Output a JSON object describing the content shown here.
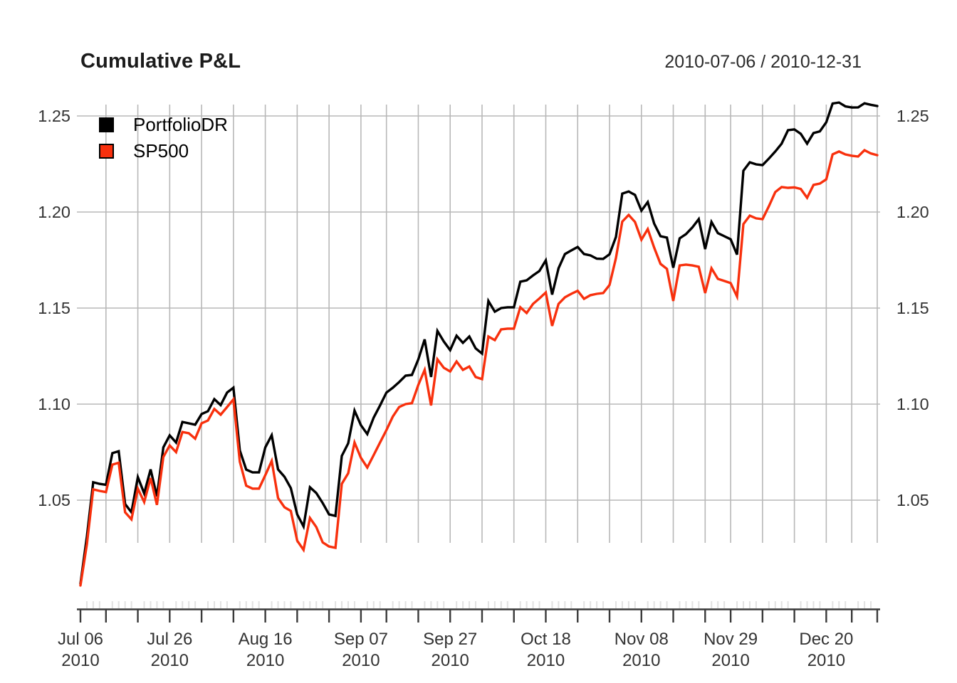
{
  "header": {
    "title": "Cumulative P&L",
    "date_range": "2010-07-06 / 2010-12-31"
  },
  "legend": {
    "position": "top-left",
    "items": [
      {
        "label": "PortfolioDR",
        "color": "#000000"
      },
      {
        "label": "SP500",
        "color": "#F8300D"
      }
    ]
  },
  "chart_data": {
    "type": "line",
    "title": "Cumulative P&L",
    "subtitle": "2010-07-06 / 2010-12-31",
    "grid": true,
    "legend_position": "top-left",
    "xlabel": "",
    "ylabel": "",
    "ylim": [
      1.0,
      1.26
    ],
    "yticks": [
      "1.05",
      "1.10",
      "1.15",
      "1.20",
      "1.25"
    ],
    "ytick_values": [
      1.05,
      1.1,
      1.15,
      1.2,
      1.25
    ],
    "xticks": [
      {
        "day": 0,
        "label": "Jul 06",
        "year": "2010"
      },
      {
        "day": 14,
        "label": "Jul 26",
        "year": "2010"
      },
      {
        "day": 29,
        "label": "Aug 16",
        "year": "2010"
      },
      {
        "day": 44,
        "label": "Sep 07",
        "year": "2010"
      },
      {
        "day": 58,
        "label": "Sep 27",
        "year": "2010"
      },
      {
        "day": 73,
        "label": "Oct 18",
        "year": "2010"
      },
      {
        "day": 88,
        "label": "Nov 08",
        "year": "2010"
      },
      {
        "day": 102,
        "label": "Nov 29",
        "year": "2010"
      },
      {
        "day": 117,
        "label": "Dec 20",
        "year": "2010"
      }
    ],
    "grid_days": [
      4,
      9,
      14,
      19,
      24,
      29,
      34,
      39,
      44,
      48,
      53,
      58,
      63,
      68,
      73,
      78,
      83,
      88,
      93,
      98,
      102,
      107,
      112,
      117,
      121,
      125
    ],
    "major_tick_days": [
      0,
      4,
      9,
      14,
      19,
      24,
      29,
      34,
      39,
      44,
      48,
      53,
      58,
      63,
      68,
      73,
      78,
      83,
      88,
      93,
      98,
      102,
      107,
      112,
      117,
      121,
      125
    ],
    "axis_color": "#3a3a3a",
    "grid_color": "#b8b8b8",
    "minor_tick_color": "#e2e2e2",
    "text_color": "#333333",
    "x_dates": [
      "2010-07-06",
      "2010-07-07",
      "2010-07-08",
      "2010-07-09",
      "2010-07-12",
      "2010-07-13",
      "2010-07-14",
      "2010-07-15",
      "2010-07-16",
      "2010-07-19",
      "2010-07-20",
      "2010-07-21",
      "2010-07-22",
      "2010-07-23",
      "2010-07-26",
      "2010-07-27",
      "2010-07-28",
      "2010-07-29",
      "2010-07-30",
      "2010-08-02",
      "2010-08-03",
      "2010-08-04",
      "2010-08-05",
      "2010-08-06",
      "2010-08-09",
      "2010-08-10",
      "2010-08-11",
      "2010-08-12",
      "2010-08-13",
      "2010-08-16",
      "2010-08-17",
      "2010-08-18",
      "2010-08-19",
      "2010-08-20",
      "2010-08-23",
      "2010-08-24",
      "2010-08-25",
      "2010-08-26",
      "2010-08-27",
      "2010-08-30",
      "2010-08-31",
      "2010-09-01",
      "2010-09-02",
      "2010-09-03",
      "2010-09-07",
      "2010-09-08",
      "2010-09-09",
      "2010-09-10",
      "2010-09-13",
      "2010-09-14",
      "2010-09-15",
      "2010-09-16",
      "2010-09-17",
      "2010-09-20",
      "2010-09-21",
      "2010-09-22",
      "2010-09-23",
      "2010-09-24",
      "2010-09-27",
      "2010-09-28",
      "2010-09-29",
      "2010-09-30",
      "2010-10-01",
      "2010-10-04",
      "2010-10-05",
      "2010-10-06",
      "2010-10-07",
      "2010-10-08",
      "2010-10-11",
      "2010-10-12",
      "2010-10-13",
      "2010-10-14",
      "2010-10-15",
      "2010-10-18",
      "2010-10-19",
      "2010-10-20",
      "2010-10-21",
      "2010-10-22",
      "2010-10-25",
      "2010-10-26",
      "2010-10-27",
      "2010-10-28",
      "2010-10-29",
      "2010-11-01",
      "2010-11-02",
      "2010-11-03",
      "2010-11-04",
      "2010-11-05",
      "2010-11-08",
      "2010-11-09",
      "2010-11-10",
      "2010-11-11",
      "2010-11-12",
      "2010-11-15",
      "2010-11-16",
      "2010-11-17",
      "2010-11-18",
      "2010-11-19",
      "2010-11-22",
      "2010-11-23",
      "2010-11-24",
      "2010-11-26",
      "2010-11-29",
      "2010-11-30",
      "2010-12-01",
      "2010-12-02",
      "2010-12-03",
      "2010-12-06",
      "2010-12-07",
      "2010-12-08",
      "2010-12-09",
      "2010-12-10",
      "2010-12-13",
      "2010-12-14",
      "2010-12-15",
      "2010-12-16",
      "2010-12-17",
      "2010-12-20",
      "2010-12-21",
      "2010-12-22",
      "2010-12-23",
      "2010-12-27",
      "2010-12-28",
      "2010-12-29",
      "2010-12-30",
      "2010-12-31"
    ],
    "series": [
      {
        "name": "PortfolioDR",
        "color": "#000000",
        "values": [
          1.0065,
          1.031,
          1.0593,
          1.0585,
          1.058,
          1.0745,
          1.0755,
          1.048,
          1.0437,
          1.062,
          1.0535,
          1.066,
          1.052,
          1.0775,
          1.0837,
          1.08,
          1.0907,
          1.09,
          1.0893,
          1.0948,
          1.0963,
          1.1026,
          1.0995,
          1.106,
          1.1085,
          1.0759,
          1.0659,
          1.0645,
          1.0645,
          1.0775,
          1.0838,
          1.066,
          1.0622,
          1.0563,
          1.0426,
          1.0363,
          1.0567,
          1.0537,
          1.0485,
          1.0426,
          1.0418,
          1.073,
          1.0796,
          1.0966,
          1.089,
          1.0844,
          1.093,
          1.0993,
          1.106,
          1.1085,
          1.1115,
          1.1148,
          1.1152,
          1.1233,
          1.1337,
          1.1141,
          1.1381,
          1.1326,
          1.1281,
          1.1356,
          1.1319,
          1.1352,
          1.129,
          1.1263,
          1.1537,
          1.1481,
          1.15,
          1.1504,
          1.1504,
          1.1637,
          1.1644,
          1.167,
          1.1693,
          1.1748,
          1.157,
          1.1707,
          1.1781,
          1.18,
          1.1818,
          1.1781,
          1.1774,
          1.1757,
          1.1756,
          1.178,
          1.187,
          1.2096,
          1.2107,
          1.2089,
          1.2007,
          1.2052,
          1.194,
          1.1874,
          1.1867,
          1.171,
          1.1863,
          1.1885,
          1.192,
          1.1963,
          1.1807,
          1.1948,
          1.189,
          1.1874,
          1.1858,
          1.1778,
          1.2215,
          1.2259,
          1.2248,
          1.2244,
          1.2278,
          1.2315,
          1.2356,
          1.2426,
          1.243,
          1.2407,
          1.2356,
          1.2411,
          1.242,
          1.2467,
          1.2565,
          1.257,
          1.255,
          1.2544,
          1.2545,
          1.2566,
          1.2558,
          1.2552
        ]
      },
      {
        "name": "SP500",
        "color": "#F8300D",
        "values": [
          1.0056,
          1.027,
          1.0556,
          1.0548,
          1.0542,
          1.0685,
          1.0695,
          1.0437,
          1.04,
          1.056,
          1.049,
          1.0615,
          1.0475,
          1.0725,
          1.0785,
          1.075,
          1.0855,
          1.0848,
          1.082,
          1.09,
          1.0915,
          1.0975,
          1.0945,
          1.0985,
          1.1025,
          1.07,
          1.0575,
          1.056,
          1.056,
          1.063,
          1.0704,
          1.0511,
          1.0463,
          1.0444,
          1.0289,
          1.0241,
          1.0407,
          1.036,
          1.028,
          1.0259,
          1.0252,
          1.0585,
          1.064,
          1.08,
          1.072,
          1.067,
          1.0735,
          1.08,
          1.0865,
          1.0935,
          1.0985,
          1.1,
          1.1005,
          1.11,
          1.1178,
          1.0993,
          1.1233,
          1.1189,
          1.117,
          1.1222,
          1.1178,
          1.1196,
          1.1141,
          1.113,
          1.1352,
          1.1333,
          1.1389,
          1.1393,
          1.1393,
          1.1504,
          1.1474,
          1.1522,
          1.155,
          1.1581,
          1.1407,
          1.1522,
          1.1556,
          1.1574,
          1.159,
          1.1548,
          1.1567,
          1.1574,
          1.1578,
          1.162,
          1.176,
          1.195,
          1.1985,
          1.1948,
          1.1856,
          1.1911,
          1.1815,
          1.173,
          1.1704,
          1.1537,
          1.1722,
          1.1726,
          1.1722,
          1.1715,
          1.1578,
          1.1707,
          1.1652,
          1.1641,
          1.163,
          1.156,
          1.1937,
          1.1981,
          1.1967,
          1.1963,
          1.203,
          1.2104,
          1.213,
          1.2126,
          1.2128,
          1.212,
          1.2074,
          1.2141,
          1.2148,
          1.217,
          1.23,
          1.2315,
          1.23,
          1.2293,
          1.2289,
          1.2322,
          1.2305,
          1.2296
        ]
      }
    ]
  }
}
